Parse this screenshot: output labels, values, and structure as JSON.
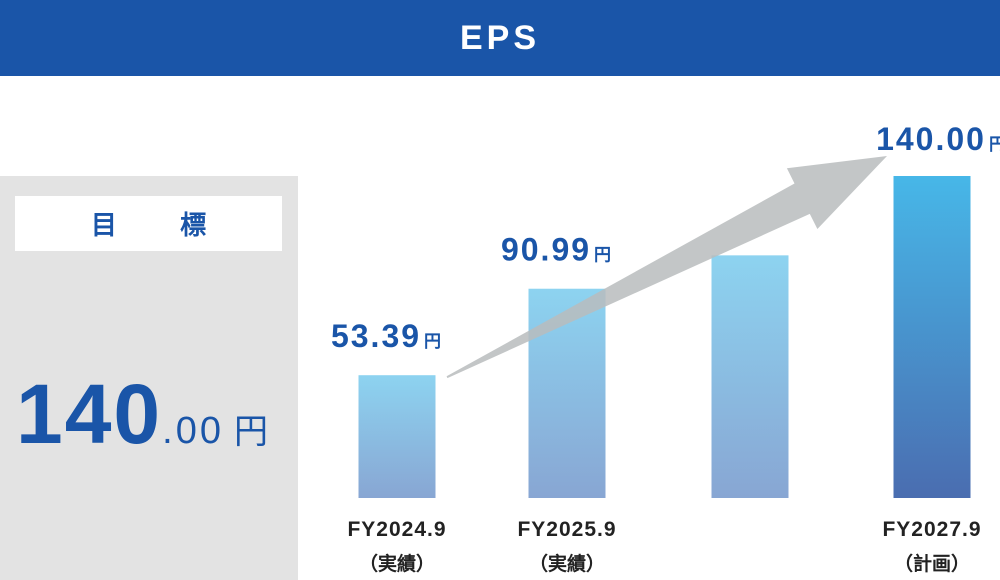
{
  "header": {
    "title": "EPS"
  },
  "target": {
    "label": "目 標",
    "value_int": "140",
    "value_dec": ".00",
    "unit": "円"
  },
  "colors": {
    "header_bg": "#1a55a8",
    "text_blue": "#1a55a8",
    "panel_bg": "#e3e3e3",
    "bar_light": "#8dcfee",
    "bar_mid": "#88a8d4",
    "bar_final_top": "#47b7e8",
    "bar_final_bottom": "#4a6fb2",
    "arrow": "#b9bcbd"
  },
  "chart_data": {
    "type": "bar",
    "title": "EPS",
    "categories": [
      "FY2024.9",
      "FY2025.9",
      "",
      "FY2027.9"
    ],
    "category_notes": [
      "（実績）",
      "（実績）",
      "",
      "（計画）"
    ],
    "values": [
      53.39,
      90.99,
      105.5,
      140.0
    ],
    "value_labels": [
      "53.39",
      "90.99",
      "",
      "140.00"
    ],
    "unit": "円",
    "ylim": [
      0,
      140
    ],
    "grid": false,
    "legend": "none",
    "trend_arrow": true
  }
}
